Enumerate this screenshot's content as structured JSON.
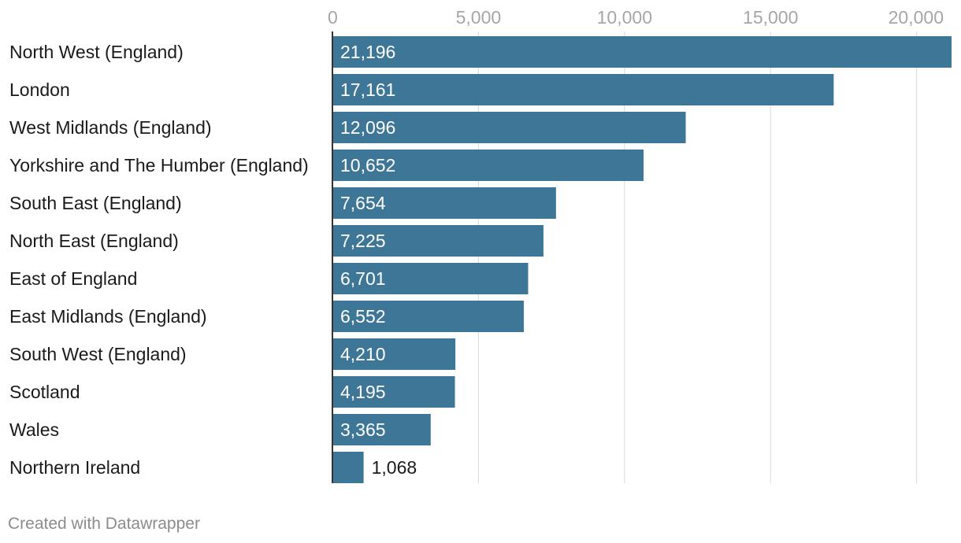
{
  "footer": "Created with Datawrapper",
  "colors": {
    "bar": "#3e7698",
    "grid": "#d9d9d9",
    "axis": "#333333",
    "tick": "#a6a6a6"
  },
  "chart_data": {
    "type": "bar",
    "orientation": "horizontal",
    "title": "",
    "xlabel": "",
    "ylabel": "",
    "xlim": [
      0,
      21196
    ],
    "grid": true,
    "ticks": [
      {
        "value": 0,
        "label": "0"
      },
      {
        "value": 5000,
        "label": "5,000"
      },
      {
        "value": 10000,
        "label": "10,000"
      },
      {
        "value": 15000,
        "label": "15,000"
      },
      {
        "value": 20000,
        "label": "20,000"
      }
    ],
    "categories": [
      "North West (England)",
      "London",
      "West Midlands (England)",
      "Yorkshire and The Humber (England)",
      "South East (England)",
      "North East (England)",
      "East of England",
      "East Midlands (England)",
      "South West (England)",
      "Scotland",
      "Wales",
      "Northern Ireland"
    ],
    "values": [
      21196,
      17161,
      12096,
      10652,
      7654,
      7225,
      6701,
      6552,
      4210,
      4195,
      3365,
      1068
    ],
    "value_labels": [
      "21,196",
      "17,161",
      "12,096",
      "10,652",
      "7,654",
      "7,225",
      "6,701",
      "6,552",
      "4,210",
      "4,195",
      "3,365",
      "1,068"
    ]
  }
}
